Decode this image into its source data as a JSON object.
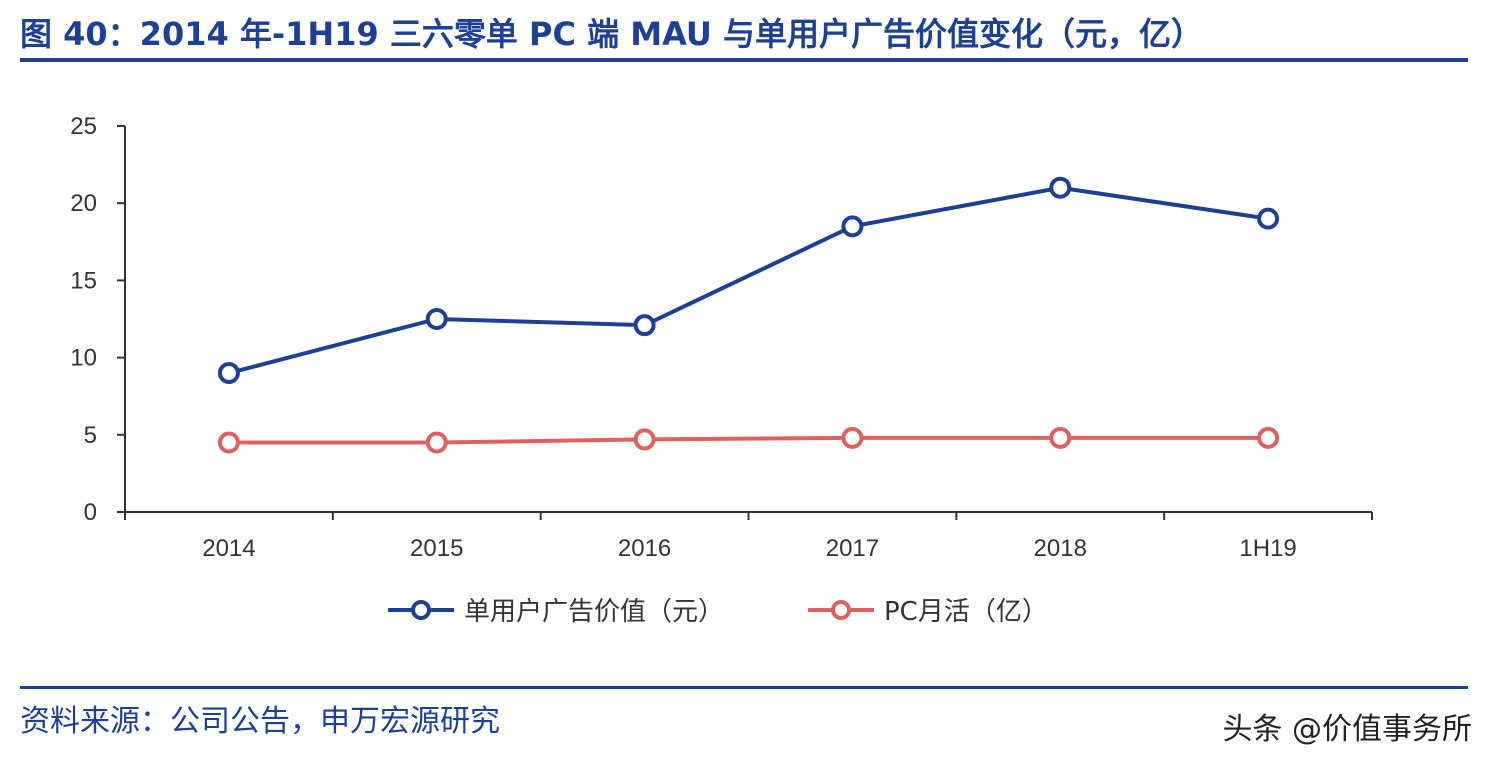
{
  "title": "图 40：2014 年-1H19 三六零单 PC 端 MAU 与单用户广告价值变化（元，亿）",
  "source": "资料来源：公司公告，申万宏源研究",
  "watermark": "头条 @价值事务所",
  "colors": {
    "title": "#1e3f94",
    "series_blue": "#1e3f94",
    "series_red": "#e06060",
    "axis": "#333333"
  },
  "chart_data": {
    "type": "line",
    "categories": [
      "2014",
      "2015",
      "2016",
      "2017",
      "2018",
      "1H19"
    ],
    "series": [
      {
        "name": "单用户广告价值（元）",
        "values": [
          9.0,
          12.5,
          12.1,
          18.5,
          21.0,
          19.0
        ]
      },
      {
        "name": "PC月活（亿）",
        "values": [
          4.5,
          4.5,
          4.7,
          4.8,
          4.8,
          4.8
        ]
      }
    ],
    "ylim": [
      0,
      25
    ],
    "yticks": [
      "0",
      "5",
      "10",
      "15",
      "20",
      "25"
    ],
    "grid": false,
    "legend_position": "bottom"
  }
}
